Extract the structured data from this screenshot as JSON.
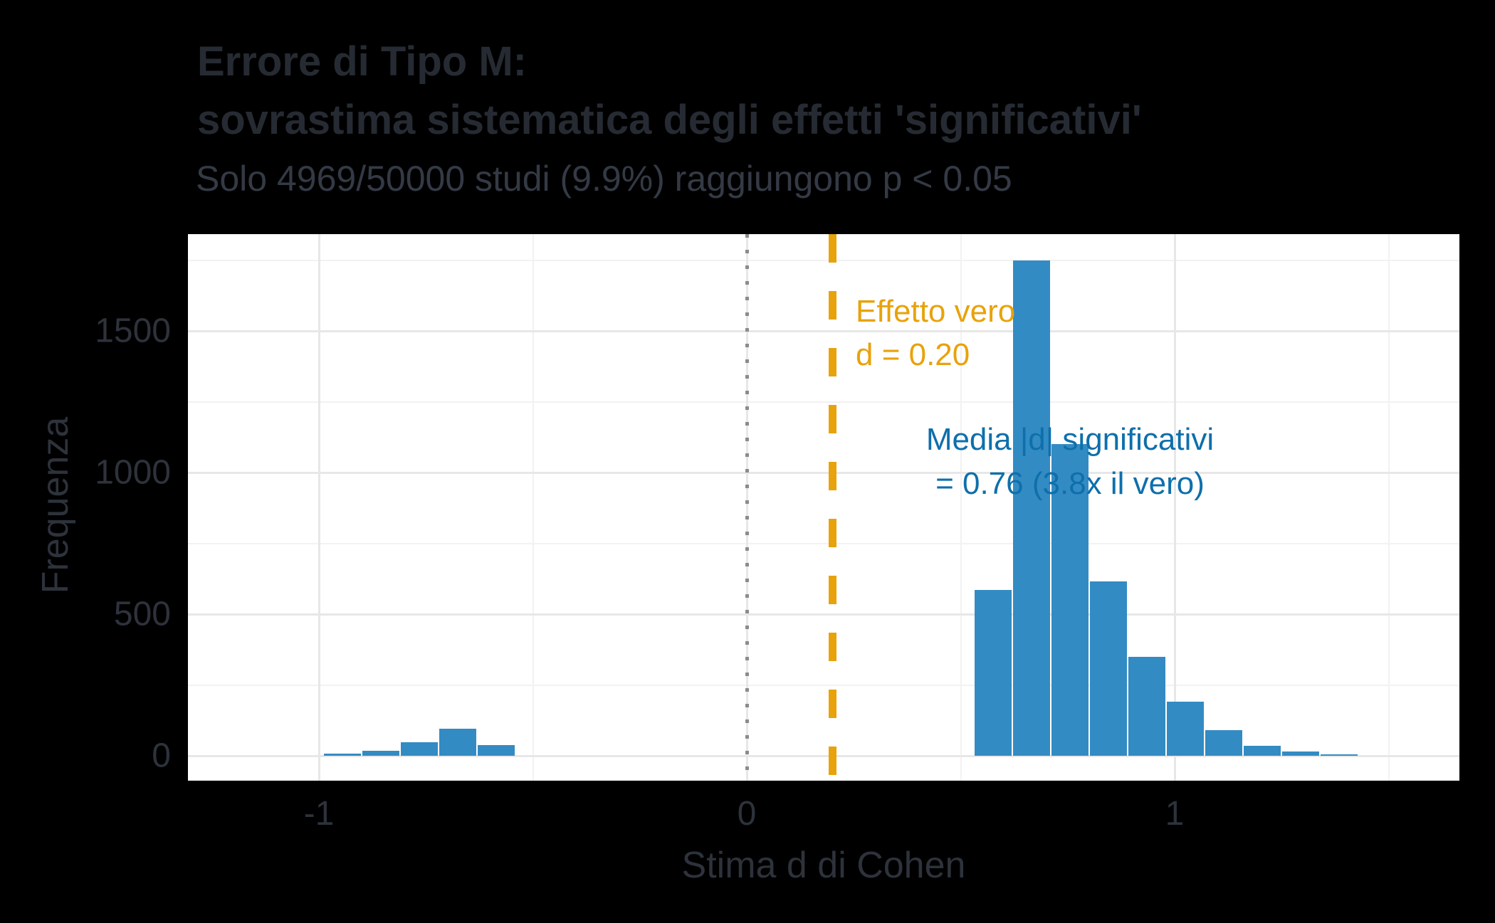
{
  "header": {
    "title_line1": "Errore di Tipo M:",
    "title_line2": "sovrastima sistematica degli effetti 'significativi'",
    "subtitle": "Solo 4969/50000 studi (9.9%) raggiungono p < 0.05"
  },
  "colors": {
    "background": "#000000",
    "panel_background": "#ffffff",
    "title_text": "#262b33",
    "subtitle_text": "#343a45",
    "axis_text": "#2d323b",
    "bar_fill": "#338bc3",
    "grid_major": "#e7e7e7",
    "grid_minor": "#f2f2f2",
    "true_effect_orange": "#e8a20c",
    "mean_blue": "#0e6fab",
    "zero_line_gray": "#8c8c8c"
  },
  "chart_data": {
    "type": "bar",
    "title": "Errore di Tipo M: sovrastima sistematica degli effetti 'significativi'",
    "subtitle": "Solo 4969/50000 studi (9.9%) raggiungono p < 0.05",
    "xlabel": "Stima d di Cohen",
    "ylabel": "Frequenza",
    "xlim": [
      -1.31,
      1.67
    ],
    "ylim": [
      0,
      1840
    ],
    "grid": true,
    "legend": false,
    "bar_color": "#338bc3",
    "bin_width": 0.09,
    "x_ticks": [
      {
        "v": -1,
        "label": "-1"
      },
      {
        "v": 0,
        "label": "0"
      },
      {
        "v": 1,
        "label": "1"
      }
    ],
    "x_minor": [
      -0.5,
      0.5,
      1.5
    ],
    "y_ticks": [
      {
        "v": 0,
        "label": "0"
      },
      {
        "v": 500,
        "label": "500"
      },
      {
        "v": 1000,
        "label": "1000"
      },
      {
        "v": 1500,
        "label": "1500"
      }
    ],
    "y_minor": [
      250,
      750,
      1250,
      1750
    ],
    "bins": [
      {
        "x_left": -0.99,
        "count": 8
      },
      {
        "x_left": -0.9,
        "count": 18
      },
      {
        "x_left": -0.81,
        "count": 48
      },
      {
        "x_left": -0.72,
        "count": 95
      },
      {
        "x_left": -0.63,
        "count": 38
      },
      {
        "x_left": 0.53,
        "count": 585
      },
      {
        "x_left": 0.62,
        "count": 1750
      },
      {
        "x_left": 0.71,
        "count": 1100
      },
      {
        "x_left": 0.8,
        "count": 615
      },
      {
        "x_left": 0.89,
        "count": 350
      },
      {
        "x_left": 0.98,
        "count": 190
      },
      {
        "x_left": 1.07,
        "count": 90
      },
      {
        "x_left": 1.16,
        "count": 35
      },
      {
        "x_left": 1.25,
        "count": 15
      },
      {
        "x_left": 1.34,
        "count": 5
      }
    ],
    "reference_lines": [
      {
        "x": 0,
        "name": "zero-line",
        "color": "#8c8c8c",
        "style": "dotted",
        "line_width": 5,
        "dash": 5,
        "gap": 17
      },
      {
        "x": 0.2,
        "name": "true-effect-line",
        "color": "#e8a20c",
        "style": "dashed",
        "line_width": 11,
        "dash": 40,
        "gap": 40
      }
    ],
    "annotation_labels": {
      "true_effect_line1": "Effetto vero",
      "true_effect_line2": "d = 0.20",
      "mean_line1": "Media |d| significativi",
      "mean_line2": "= 0.76 (3.8x il vero)"
    }
  }
}
